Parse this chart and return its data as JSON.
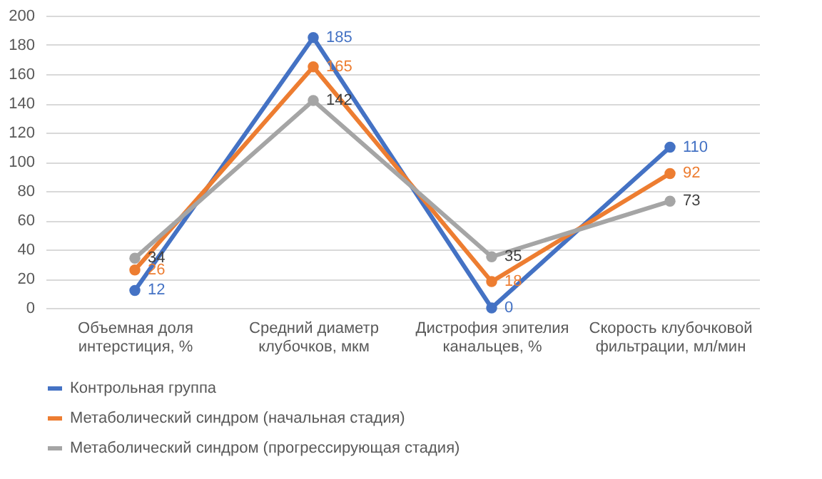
{
  "chart_data": {
    "type": "line",
    "categories": [
      "Объемная доля\nинтерстиция, %",
      "Средний диаметр\nклубочков, мкм",
      "Дистрофия эпителия\nканальцев, %",
      "Скорость клубочковой\nфильтрации, мл/мин"
    ],
    "series": [
      {
        "name": "Контрольная группа",
        "color": "#4472c4",
        "values": [
          12,
          185,
          0,
          110
        ]
      },
      {
        "name": "Метаболический синдром (начальная стадия)",
        "color": "#ed7d31",
        "values": [
          26,
          165,
          18,
          92
        ]
      },
      {
        "name": "Метаболический синдром (прогрессирующая стадия)",
        "color": "#a5a5a5",
        "values": [
          34,
          142,
          35,
          73
        ]
      }
    ],
    "ylim": [
      0,
      200
    ],
    "yticks": [
      0,
      20,
      40,
      60,
      80,
      100,
      120,
      140,
      160,
      180,
      200
    ],
    "grid": "y",
    "legend": "bottom",
    "marker": "circle",
    "line_style": "solid",
    "data_labels": true
  }
}
